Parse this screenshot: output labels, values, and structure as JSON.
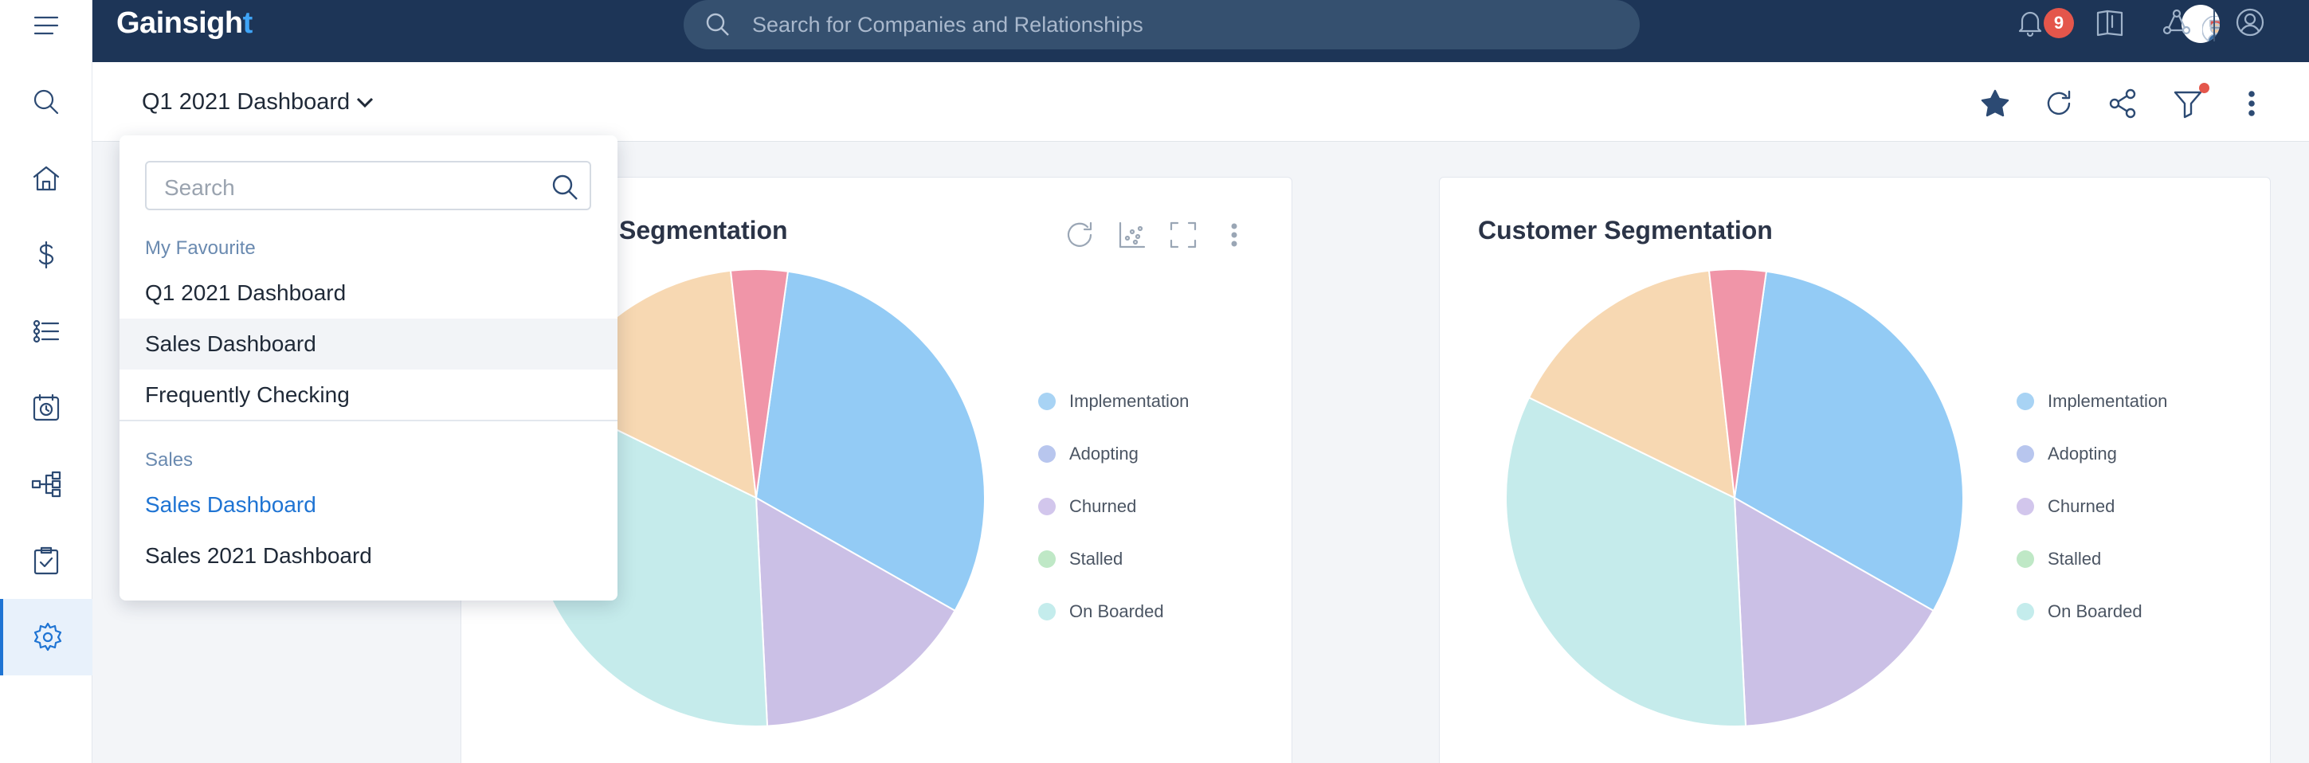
{
  "app": {
    "logo_main": "Gainsigh",
    "logo_accent": "t"
  },
  "topbar": {
    "search_placeholder": "Search for Companies and Relationships",
    "notification_count": "9"
  },
  "left_rail": {
    "items": [
      {
        "name": "menu-icon"
      },
      {
        "name": "search-icon"
      },
      {
        "name": "home-icon"
      },
      {
        "name": "dollar-icon"
      },
      {
        "name": "timeline-list-icon"
      },
      {
        "name": "calendar-clock-icon"
      },
      {
        "name": "flow-icon"
      },
      {
        "name": "task-check-icon"
      },
      {
        "name": "gear-icon",
        "active": true
      }
    ]
  },
  "dashboard": {
    "title": "Q1 2021 Dashboard"
  },
  "dropdown": {
    "search_placeholder": "Search",
    "group_favourite": "My Favourite",
    "favourites": [
      "Q1 2021 Dashboard",
      "Sales Dashboard",
      "Frequently Checking"
    ],
    "group_sales": "Sales",
    "sales": [
      "Sales Dashboard",
      "Sales 2021 Dashboard"
    ]
  },
  "cards": [
    {
      "title": "Segmentation"
    },
    {
      "title": "Customer Segmentation"
    }
  ],
  "legend": [
    "Implementation",
    "Adopting",
    "Churned",
    "Stalled",
    "On Boarded"
  ],
  "colors": {
    "implementation": "#a8d3f4",
    "adopting": "#b8c6ee",
    "churned": "#d2c6ec",
    "stalled": "#bfe8c6",
    "on_boarded": "#c4ecec",
    "slice_blue": "#93cbf5",
    "slice_lavender": "#cbc0e6",
    "slice_teal": "#c5ebeb",
    "slice_peach": "#f7d8b2",
    "slice_pink": "#f095a8"
  },
  "chart_data": [
    {
      "type": "pie",
      "title": "Segmentation",
      "slices": [
        {
          "color": "#93cbf5",
          "value": 31
        },
        {
          "color": "#cbc0e6",
          "value": 16
        },
        {
          "color": "#c5ebeb",
          "value": 33
        },
        {
          "color": "#f7d8b2",
          "value": 16
        },
        {
          "color": "#f095a8",
          "value": 4
        }
      ],
      "legend": [
        "Implementation",
        "Adopting",
        "Churned",
        "Stalled",
        "On Boarded"
      ]
    },
    {
      "type": "pie",
      "title": "Customer Segmentation",
      "slices": [
        {
          "color": "#93cbf5",
          "value": 31
        },
        {
          "color": "#cbc0e6",
          "value": 16
        },
        {
          "color": "#c5ebeb",
          "value": 33
        },
        {
          "color": "#f7d8b2",
          "value": 16
        },
        {
          "color": "#f095a8",
          "value": 4
        }
      ],
      "legend": [
        "Implementation",
        "Adopting",
        "Churned",
        "Stalled",
        "On Boarded"
      ]
    }
  ]
}
